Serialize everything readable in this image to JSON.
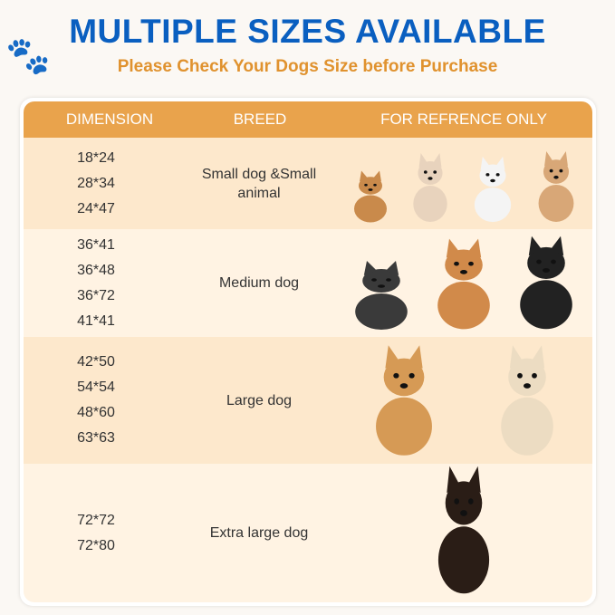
{
  "title": "MULTIPLE SIZES AVAILABLE",
  "subtitle": "Please Check Your Dogs Size before Purchase",
  "table": {
    "headers": [
      "DIMENSION",
      "BREED",
      "FOR REFRENCE ONLY"
    ],
    "colors": {
      "header": "#e9a34c",
      "row_a": "#fde8cc",
      "row_b": "#fff3e3"
    },
    "rows": [
      {
        "dims": [
          "18*24",
          "28*34",
          "24*47"
        ],
        "breed": "Small dog &Small animal",
        "images": [
          "guinea-pig",
          "chihuahua",
          "bichon",
          "corgi"
        ]
      },
      {
        "dims": [
          "36*41",
          "36*48",
          "36*72",
          "41*41"
        ],
        "breed": "Medium dog",
        "images": [
          "french-bulldog",
          "shiba-inu",
          "border-collie"
        ]
      },
      {
        "dims": [
          "42*50",
          "54*54",
          "48*60",
          "63*63"
        ],
        "breed": "Large dog",
        "images": [
          "golden-retriever",
          "labrador"
        ]
      },
      {
        "dims": [
          "72*72",
          "72*80"
        ],
        "breed": "Extra large dog",
        "images": [
          "doberman"
        ]
      }
    ]
  }
}
